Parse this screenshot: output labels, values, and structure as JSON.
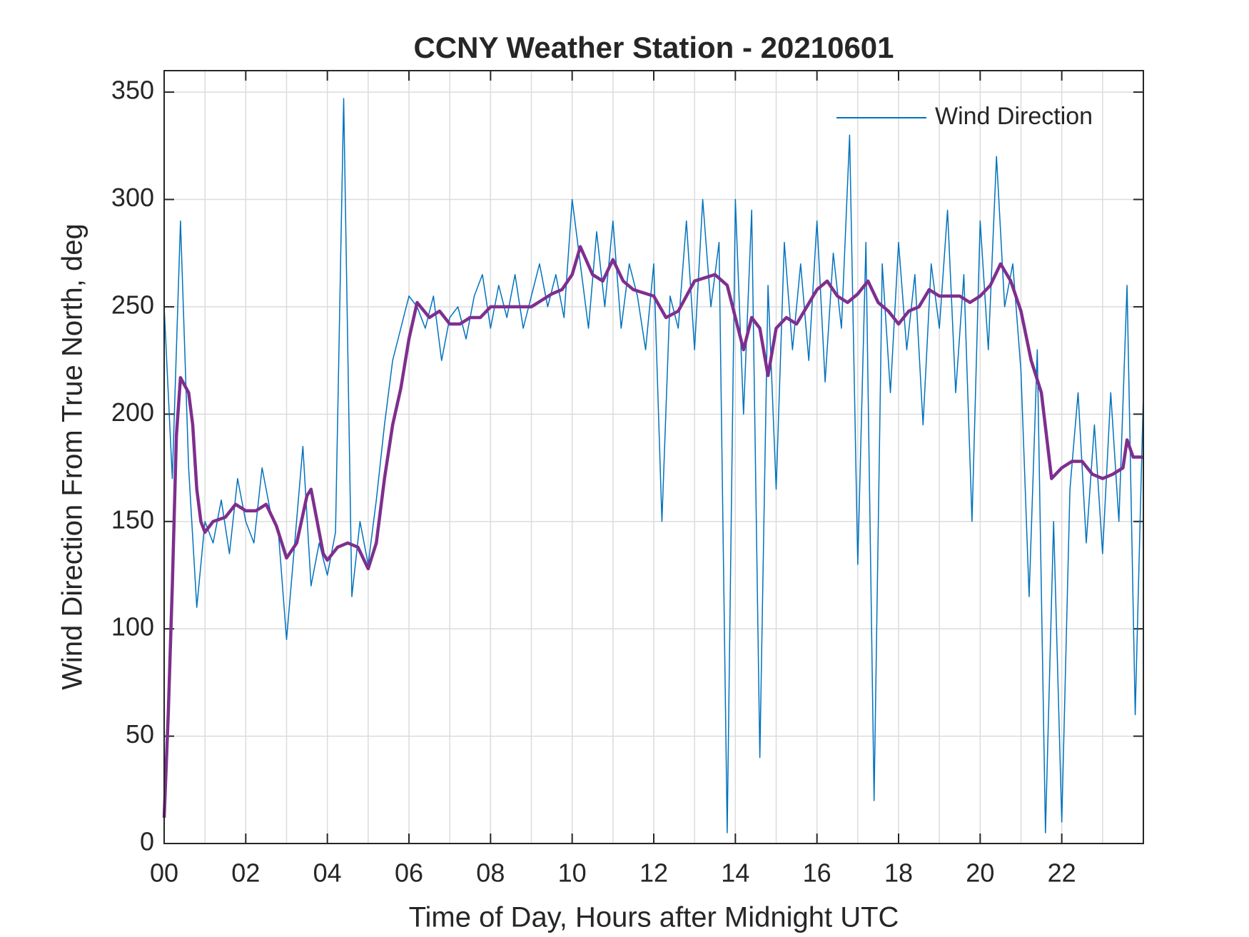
{
  "chart_data": {
    "type": "line",
    "title": "CCNY Weather Station - 20210601",
    "xlabel": "Time of Day, Hours after Midnight UTC",
    "ylabel": "Wind Direction From True North, deg",
    "xlim": [
      0,
      24
    ],
    "ylim": [
      0,
      360
    ],
    "xticks": [
      {
        "value": 0,
        "label": "00"
      },
      {
        "value": 2,
        "label": "02"
      },
      {
        "value": 4,
        "label": "04"
      },
      {
        "value": 6,
        "label": "06"
      },
      {
        "value": 8,
        "label": "08"
      },
      {
        "value": 10,
        "label": "10"
      },
      {
        "value": 12,
        "label": "12"
      },
      {
        "value": 14,
        "label": "14"
      },
      {
        "value": 16,
        "label": "16"
      },
      {
        "value": 18,
        "label": "18"
      },
      {
        "value": 20,
        "label": "20"
      },
      {
        "value": 22,
        "label": "22"
      }
    ],
    "xminorticks": [
      1,
      3,
      5,
      7,
      9,
      11,
      13,
      15,
      17,
      19,
      21,
      23
    ],
    "yticks": [
      0,
      50,
      100,
      150,
      200,
      250,
      300,
      350
    ],
    "grid": true,
    "legend": "upper right",
    "series": [
      {
        "name": "Wind Direction",
        "color": "#0072bd",
        "width": 1.5,
        "x": [
          0,
          0.2,
          0.4,
          0.6,
          0.8,
          1,
          1.2,
          1.4,
          1.6,
          1.8,
          2,
          2.2,
          2.4,
          2.6,
          2.8,
          3,
          3.2,
          3.4,
          3.6,
          3.8,
          4,
          4.2,
          4.4,
          4.6,
          4.8,
          5,
          5.2,
          5.4,
          5.6,
          5.8,
          6,
          6.2,
          6.4,
          6.6,
          6.8,
          7,
          7.2,
          7.4,
          7.6,
          7.8,
          8,
          8.2,
          8.4,
          8.6,
          8.8,
          9,
          9.2,
          9.4,
          9.6,
          9.8,
          10,
          10.2,
          10.4,
          10.6,
          10.8,
          11,
          11.2,
          11.4,
          11.6,
          11.8,
          12,
          12.2,
          12.4,
          12.6,
          12.8,
          13,
          13.2,
          13.4,
          13.6,
          13.8,
          14,
          14.2,
          14.4,
          14.6,
          14.8,
          15,
          15.2,
          15.4,
          15.6,
          15.8,
          16,
          16.2,
          16.4,
          16.6,
          16.8,
          17,
          17.2,
          17.4,
          17.6,
          17.8,
          18,
          18.2,
          18.4,
          18.6,
          18.8,
          19,
          19.2,
          19.4,
          19.6,
          19.8,
          20,
          20.2,
          20.4,
          20.6,
          20.8,
          21,
          21.2,
          21.4,
          21.6,
          21.8,
          22,
          22.2,
          22.4,
          22.6,
          22.8,
          23,
          23.2,
          23.4,
          23.6,
          23.8,
          24
        ],
        "values": [
          250,
          170,
          290,
          175,
          110,
          150,
          140,
          160,
          135,
          170,
          150,
          140,
          175,
          155,
          145,
          95,
          140,
          185,
          120,
          140,
          125,
          145,
          347,
          115,
          150,
          130,
          160,
          195,
          225,
          240,
          255,
          250,
          240,
          255,
          225,
          245,
          250,
          235,
          255,
          265,
          240,
          260,
          245,
          265,
          240,
          255,
          270,
          250,
          265,
          245,
          300,
          270,
          240,
          285,
          250,
          290,
          240,
          270,
          255,
          230,
          270,
          150,
          255,
          240,
          290,
          230,
          300,
          250,
          280,
          5,
          300,
          200,
          295,
          40,
          260,
          165,
          280,
          230,
          270,
          225,
          290,
          215,
          275,
          240,
          330,
          130,
          280,
          20,
          270,
          210,
          280,
          230,
          265,
          195,
          270,
          240,
          295,
          210,
          265,
          150,
          290,
          230,
          320,
          250,
          270,
          220,
          115,
          230,
          5,
          150,
          10,
          165,
          210,
          140,
          195,
          135,
          210,
          150,
          260,
          60,
          210
        ]
      },
      {
        "color": "#7e2f8e",
        "width": 4.5,
        "x": [
          0,
          0.1,
          0.2,
          0.3,
          0.4,
          0.6,
          0.7,
          0.8,
          0.9,
          1,
          1.2,
          1.5,
          1.75,
          2,
          2.25,
          2.5,
          2.75,
          3,
          3.25,
          3.5,
          3.6,
          3.75,
          3.9,
          4,
          4.25,
          4.5,
          4.75,
          4.9,
          5,
          5.2,
          5.4,
          5.6,
          5.8,
          6,
          6.2,
          6.5,
          6.75,
          7,
          7.25,
          7.5,
          7.75,
          8,
          8.5,
          9,
          9.5,
          9.75,
          10,
          10.2,
          10.5,
          10.75,
          11,
          11.25,
          11.5,
          12,
          12.3,
          12.6,
          13,
          13.5,
          13.8,
          14,
          14.2,
          14.4,
          14.6,
          14.8,
          15,
          15.25,
          15.5,
          15.75,
          16,
          16.25,
          16.5,
          16.75,
          17,
          17.25,
          17.5,
          17.75,
          18,
          18.25,
          18.5,
          18.75,
          19,
          19.25,
          19.5,
          19.75,
          20,
          20.25,
          20.5,
          20.75,
          21,
          21.25,
          21.5,
          21.75,
          22,
          22.25,
          22.5,
          22.75,
          23,
          23.25,
          23.5,
          23.6,
          23.75,
          24
        ],
        "values": [
          12,
          60,
          120,
          190,
          217,
          210,
          195,
          165,
          150,
          145,
          150,
          152,
          158,
          155,
          155,
          158,
          148,
          133,
          140,
          162,
          165,
          150,
          135,
          132,
          138,
          140,
          138,
          132,
          128,
          140,
          170,
          195,
          212,
          235,
          252,
          245,
          248,
          242,
          242,
          245,
          245,
          250,
          250,
          250,
          256,
          258,
          265,
          278,
          265,
          262,
          272,
          262,
          258,
          255,
          245,
          248,
          262,
          265,
          260,
          245,
          230,
          245,
          240,
          218,
          240,
          245,
          242,
          250,
          258,
          262,
          255,
          252,
          256,
          262,
          252,
          248,
          242,
          248,
          250,
          258,
          255,
          255,
          255,
          252,
          255,
          260,
          270,
          262,
          248,
          225,
          210,
          170,
          175,
          178,
          178,
          172,
          170,
          172,
          175,
          188,
          180,
          180
        ]
      }
    ]
  }
}
